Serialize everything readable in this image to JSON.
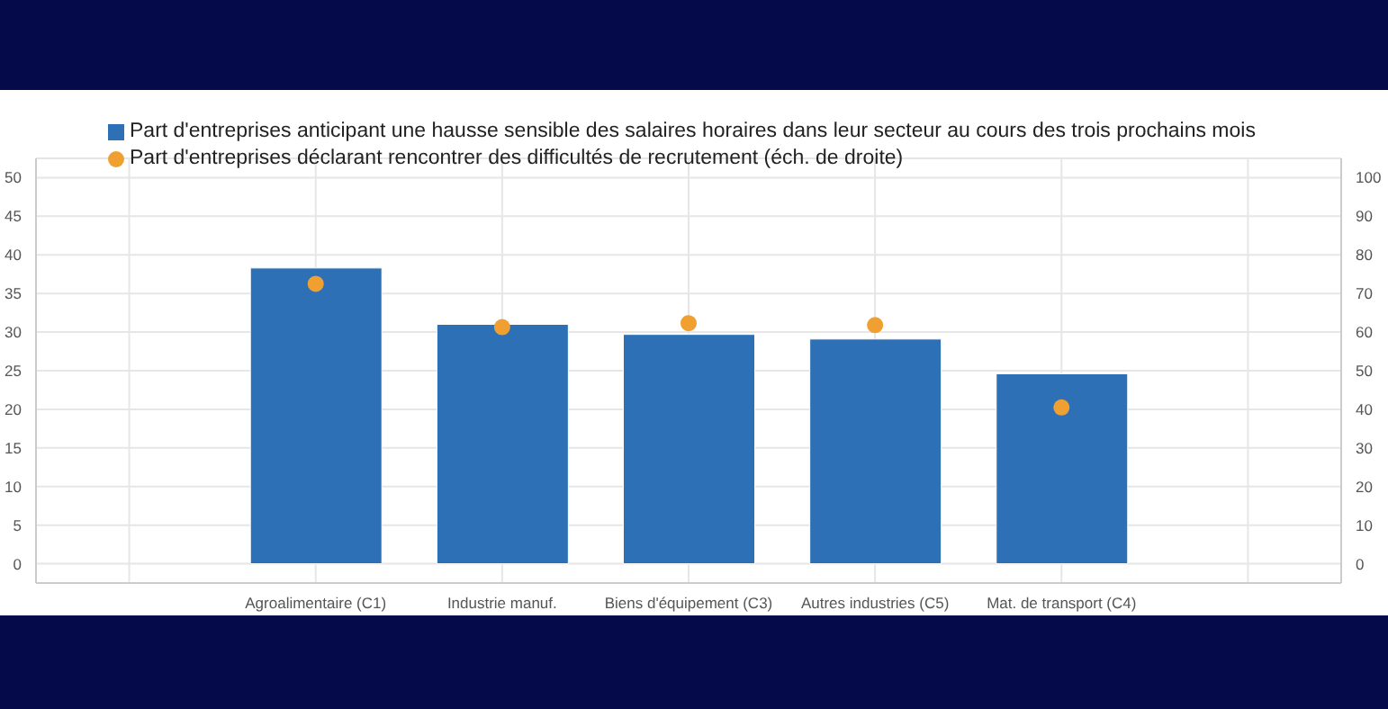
{
  "chart_data": {
    "type": "bar",
    "categories": [
      null,
      "Agroalimentaire (C1)",
      "Industrie manuf.",
      "Biens d'équipement (C3)",
      "Autres industries (C5)",
      "Mat. de transport (C4)",
      null
    ],
    "series": [
      {
        "name": "Part d'entreprises anticipant une hausse sensible des salaires horaires dans leur secteur au cours des trois prochains mois",
        "color": "#2e70b5",
        "values": [
          null,
          38.3,
          31,
          29.7,
          29.1,
          24.6,
          null
        ]
      },
      {
        "name": "Part d'entreprises déclarant rencontrer des difficultés de recrutement (éch. de droite)",
        "type": "scatter",
        "axis": "y2",
        "color": "#f0a030",
        "values": [
          null,
          72.5,
          61.3,
          62.3,
          61.8,
          40.5,
          null
        ]
      }
    ],
    "ylim": [
      -2.5,
      52.5
    ],
    "yticks": [
      0,
      5,
      10,
      15,
      20,
      25,
      30,
      35,
      40,
      45,
      50
    ],
    "y2lim": [
      -5,
      105
    ],
    "y2ticks": [
      0,
      10,
      20,
      30,
      40,
      50,
      60,
      70,
      80,
      90,
      100
    ],
    "grid": true,
    "legend": "top",
    "marker": "circle"
  }
}
